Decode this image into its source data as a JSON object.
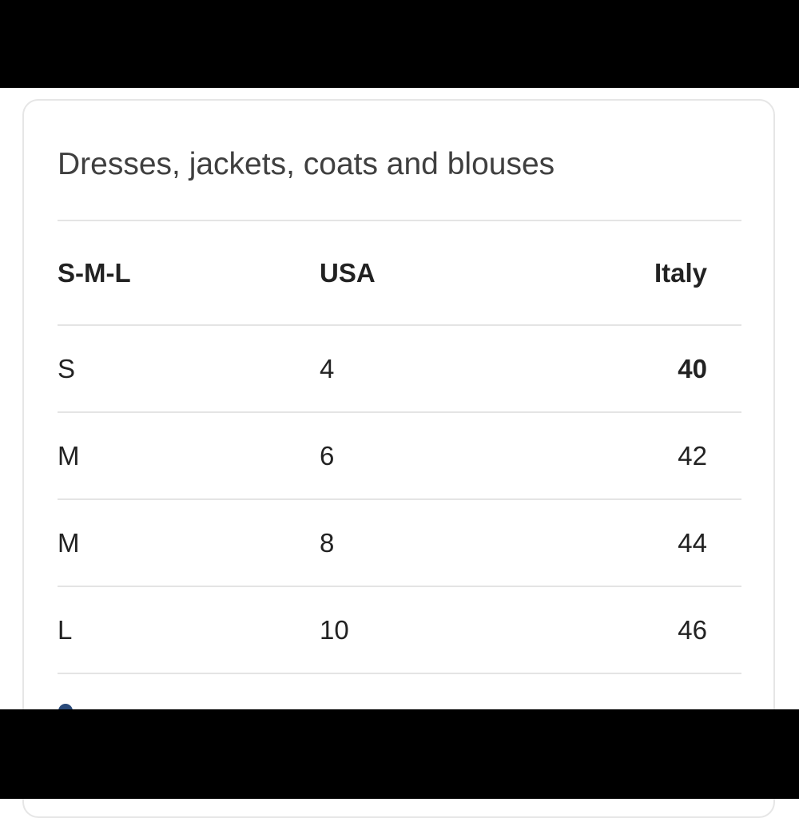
{
  "title": "Dresses, jackets, coats and blouses",
  "table": {
    "headers": [
      "S-M-L",
      "USA",
      "Italy"
    ],
    "rows": [
      [
        "S",
        "4",
        "40"
      ],
      [
        "M",
        "6",
        "42"
      ],
      [
        "M",
        "8",
        "44"
      ],
      [
        "L",
        "10",
        "46"
      ]
    ],
    "highlighted_cell": "40"
  },
  "colors": {
    "title": "#3f3f3f",
    "text": "#222222",
    "divider": "#e4e4e4",
    "link_dot": "#2a4a7a"
  }
}
